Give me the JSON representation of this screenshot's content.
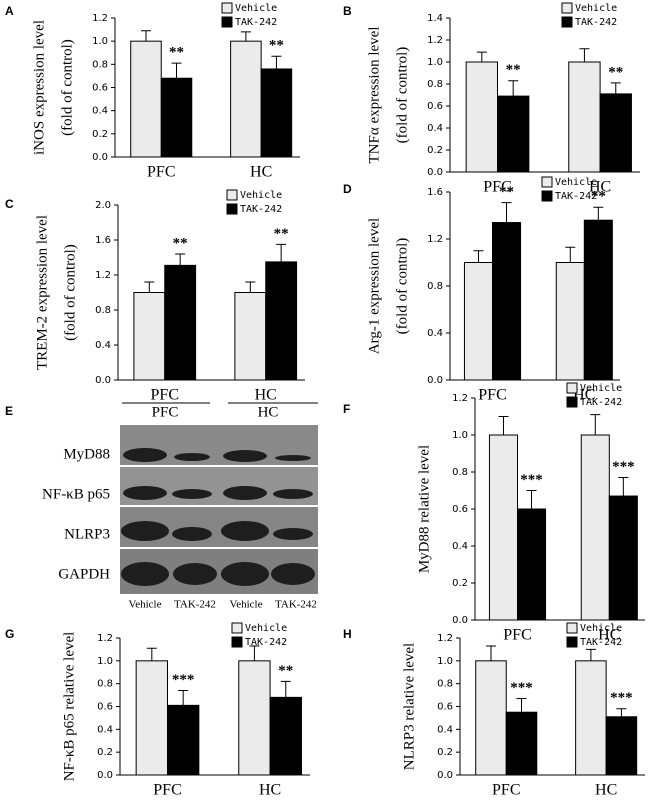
{
  "chart_data": [
    {
      "type": "bar",
      "label": "A",
      "ylabel": [
        "iNOS expression level",
        "(fold of control)"
      ],
      "categories": [
        "PFC",
        "HC"
      ],
      "series": [
        {
          "name": "Vehicle",
          "color": "#ebebeb",
          "values": [
            1.0,
            1.0
          ],
          "errors": [
            0.09,
            0.08
          ]
        },
        {
          "name": "TAK-242",
          "color": "#000000",
          "values": [
            0.68,
            0.76
          ],
          "errors": [
            0.13,
            0.11
          ]
        }
      ],
      "annotations": [
        "**",
        "**"
      ],
      "ylim": [
        0,
        1.2
      ],
      "yticks": [
        {
          "value": 0,
          "label": "0.0"
        },
        0.2,
        0.4,
        0.6,
        0.8,
        {
          "value": 1,
          "label": "1.0"
        },
        1.2
      ]
    },
    {
      "type": "bar",
      "label": "B",
      "ylabel": [
        "TNFα expression level",
        "(fold of control)"
      ],
      "categories": [
        "PFC",
        "HC"
      ],
      "series": [
        {
          "name": "Vehicle",
          "color": "#ebebeb",
          "values": [
            1.0,
            1.0
          ],
          "errors": [
            0.09,
            0.12
          ]
        },
        {
          "name": "TAK-242",
          "color": "#000000",
          "values": [
            0.69,
            0.71
          ],
          "errors": [
            0.14,
            0.1
          ]
        }
      ],
      "annotations": [
        "**",
        "**"
      ],
      "ylim": [
        0,
        1.4
      ],
      "yticks": [
        {
          "value": 0,
          "label": "0.0"
        },
        0.2,
        0.4,
        0.6,
        0.8,
        {
          "value": 1,
          "label": "1.0"
        },
        1.2,
        1.4
      ]
    },
    {
      "type": "bar",
      "label": "C",
      "ylabel": [
        "TREM-2 expression level",
        "(fold of control)"
      ],
      "categories": [
        "PFC",
        "HC"
      ],
      "series": [
        {
          "name": "Vehicle",
          "color": "#ebebeb",
          "values": [
            1.0,
            1.0
          ],
          "errors": [
            0.12,
            0.12
          ]
        },
        {
          "name": "TAK-242",
          "color": "#000000",
          "values": [
            1.31,
            1.35
          ],
          "errors": [
            0.13,
            0.2
          ]
        }
      ],
      "annotations": [
        "**",
        "**"
      ],
      "ylim": [
        0,
        2.0
      ],
      "yticks": [
        {
          "value": 0,
          "label": "0.0"
        },
        0.4,
        0.8,
        1.2,
        1.6,
        {
          "value": 2,
          "label": "2.0"
        }
      ]
    },
    {
      "type": "bar",
      "label": "D",
      "ylabel": [
        "Arg-1 expression level",
        "(fold of control)"
      ],
      "categories": [
        "PFC",
        "HC"
      ],
      "series": [
        {
          "name": "Vehicle",
          "color": "#ebebeb",
          "values": [
            1.0,
            1.0
          ],
          "errors": [
            0.1,
            0.13
          ]
        },
        {
          "name": "TAK-242",
          "color": "#000000",
          "values": [
            1.34,
            1.36
          ],
          "errors": [
            0.17,
            0.11
          ]
        }
      ],
      "annotations": [
        "**",
        "**"
      ],
      "ylim": [
        0,
        1.6
      ],
      "yticks": [
        {
          "value": 0,
          "label": "0.0"
        },
        0.4,
        0.8,
        1.2,
        1.6
      ]
    },
    {
      "type": "bar",
      "label": "F",
      "ylabel": [
        "MyD88 relative level"
      ],
      "categories": [
        "PFC",
        "HC"
      ],
      "series": [
        {
          "name": "Vehicle",
          "color": "#ebebeb",
          "values": [
            1.0,
            1.0
          ],
          "errors": [
            0.1,
            0.11
          ]
        },
        {
          "name": "TAK-242",
          "color": "#000000",
          "values": [
            0.6,
            0.67
          ],
          "errors": [
            0.1,
            0.1
          ]
        }
      ],
      "annotations": [
        "***",
        "***"
      ],
      "ylim": [
        0,
        1.2
      ],
      "yticks": [
        {
          "value": 0,
          "label": "0.0"
        },
        0.2,
        0.4,
        0.6,
        0.8,
        {
          "value": 1,
          "label": "1.0"
        },
        1.2
      ]
    },
    {
      "type": "bar",
      "label": "G",
      "ylabel": [
        "NF-κB p65 relative level"
      ],
      "categories": [
        "PFC",
        "HC"
      ],
      "series": [
        {
          "name": "Vehicle",
          "color": "#ebebeb",
          "values": [
            1.0,
            1.0
          ],
          "errors": [
            0.11,
            0.13
          ]
        },
        {
          "name": "TAK-242",
          "color": "#000000",
          "values": [
            0.61,
            0.68
          ],
          "errors": [
            0.13,
            0.14
          ]
        }
      ],
      "annotations": [
        "***",
        "**"
      ],
      "ylim": [
        0,
        1.2
      ],
      "yticks": [
        {
          "value": 0,
          "label": "0.0"
        },
        0.2,
        0.4,
        0.6,
        0.8,
        {
          "value": 1,
          "label": "1.0"
        },
        1.2
      ]
    },
    {
      "type": "bar",
      "label": "H",
      "ylabel": [
        "NLRP3 relative level"
      ],
      "categories": [
        "PFC",
        "HC"
      ],
      "series": [
        {
          "name": "Vehicle",
          "color": "#ebebeb",
          "values": [
            1.0,
            1.0
          ],
          "errors": [
            0.13,
            0.1
          ]
        },
        {
          "name": "TAK-242",
          "color": "#000000",
          "values": [
            0.55,
            0.51
          ],
          "errors": [
            0.12,
            0.07
          ]
        }
      ],
      "annotations": [
        "***",
        "***"
      ],
      "ylim": [
        0,
        1.2
      ],
      "yticks": [
        {
          "value": 0,
          "label": "0.0"
        },
        0.2,
        0.4,
        0.6,
        0.8,
        {
          "value": 1,
          "label": "1.0"
        },
        1.2
      ]
    }
  ],
  "blot": {
    "label": "E",
    "groups": [
      "PFC",
      "HC"
    ],
    "rows": [
      "MyD88",
      "NF-κB p65",
      "NLRP3",
      "GAPDH"
    ],
    "lanes": [
      "Vehicle",
      "TAK-242",
      "Vehicle",
      "TAK-242"
    ]
  }
}
